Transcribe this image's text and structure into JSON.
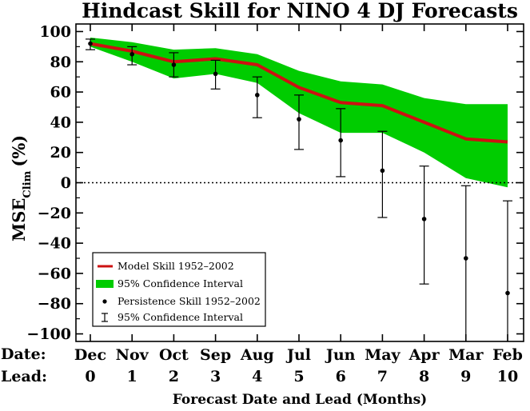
{
  "chart_data": {
    "type": "line",
    "title": "Hindcast Skill for NINO 4 DJ Forecasts",
    "xlabel": "Forecast Date and Lead (Months)",
    "ylabel": "MSE",
    "ylabel_subscript": "Clim",
    "ylabel_unit": "(%)",
    "row_labels": {
      "date": "Date:",
      "lead": "Lead:"
    },
    "categories": [
      "Dec",
      "Nov",
      "Oct",
      "Sep",
      "Aug",
      "Jul",
      "Jun",
      "May",
      "Apr",
      "Mar",
      "Feb"
    ],
    "leads": [
      "0",
      "1",
      "2",
      "3",
      "4",
      "5",
      "6",
      "7",
      "8",
      "9",
      "10"
    ],
    "x": [
      0,
      1,
      2,
      3,
      4,
      5,
      6,
      7,
      8,
      9,
      10
    ],
    "ylim": [
      -105,
      105
    ],
    "yticks": [
      -100,
      -80,
      -60,
      -40,
      -20,
      0,
      20,
      40,
      60,
      80,
      100
    ],
    "ytick_labels": [
      "−100",
      "−80",
      "−60",
      "−40",
      "−20",
      "0",
      "20",
      "40",
      "60",
      "80",
      "100"
    ],
    "series": [
      {
        "name": "Model Skill 1952–2002",
        "kind": "line",
        "color": "#cc1111",
        "values": [
          92,
          87,
          80,
          82,
          78,
          63,
          53,
          51,
          40,
          29,
          27
        ],
        "ci_name": "95% Confidence Interval",
        "ci_color": "#00cc00",
        "ci_lower": [
          90,
          80,
          69,
          72,
          66,
          46,
          33,
          33,
          20,
          3,
          -3
        ],
        "ci_upper": [
          96,
          93,
          88,
          89,
          85,
          74,
          67,
          65,
          56,
          52,
          52
        ]
      },
      {
        "name": "Persistence Skill 1952–2002",
        "kind": "points",
        "color": "#000000",
        "values": [
          92,
          85,
          78,
          72,
          58,
          42,
          28,
          8,
          -24,
          -50,
          -73
        ],
        "ci_name": "95% Confidence Interval",
        "ci_lower": [
          88,
          78,
          70,
          62,
          43,
          22,
          4,
          -23,
          -67,
          -105,
          -105
        ],
        "ci_upper": [
          95,
          90,
          86,
          81,
          70,
          58,
          49,
          34,
          11,
          -2,
          -12
        ]
      }
    ],
    "zero_line": true,
    "grid": false,
    "legend_position": "bottom-left"
  }
}
